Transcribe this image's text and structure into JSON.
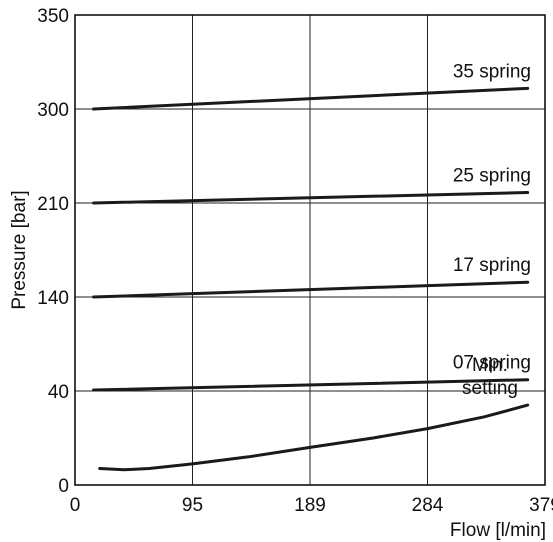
{
  "chart_data": {
    "type": "line",
    "xlabel": "Flow [l/min]",
    "ylabel": "Pressure [bar]",
    "x_ticks": [
      0,
      95,
      189,
      284,
      379
    ],
    "y_ticks": [
      0,
      40,
      140,
      210,
      300,
      350
    ],
    "grid": true,
    "series": [
      {
        "name": "35 spring",
        "label_lines": [
          "35 spring"
        ],
        "x": [
          15,
          365
        ],
        "y": [
          300,
          311
        ]
      },
      {
        "name": "25 spring",
        "label_lines": [
          "25 spring"
        ],
        "x": [
          15,
          365
        ],
        "y": [
          210,
          220
        ]
      },
      {
        "name": "17 spring",
        "label_lines": [
          "17 spring"
        ],
        "x": [
          15,
          365
        ],
        "y": [
          140,
          151
        ]
      },
      {
        "name": "07 spring",
        "label_lines": [
          "07 spring"
        ],
        "x": [
          15,
          365
        ],
        "y": [
          41,
          52
        ]
      },
      {
        "name": "Min. setting",
        "label_lines": [
          "Min.",
          "setting"
        ],
        "x": [
          20,
          40,
          60,
          95,
          140,
          189,
          240,
          284,
          330,
          365
        ],
        "y": [
          7,
          6.5,
          7,
          9,
          12,
          16,
          20,
          24,
          29,
          34
        ]
      }
    ]
  }
}
